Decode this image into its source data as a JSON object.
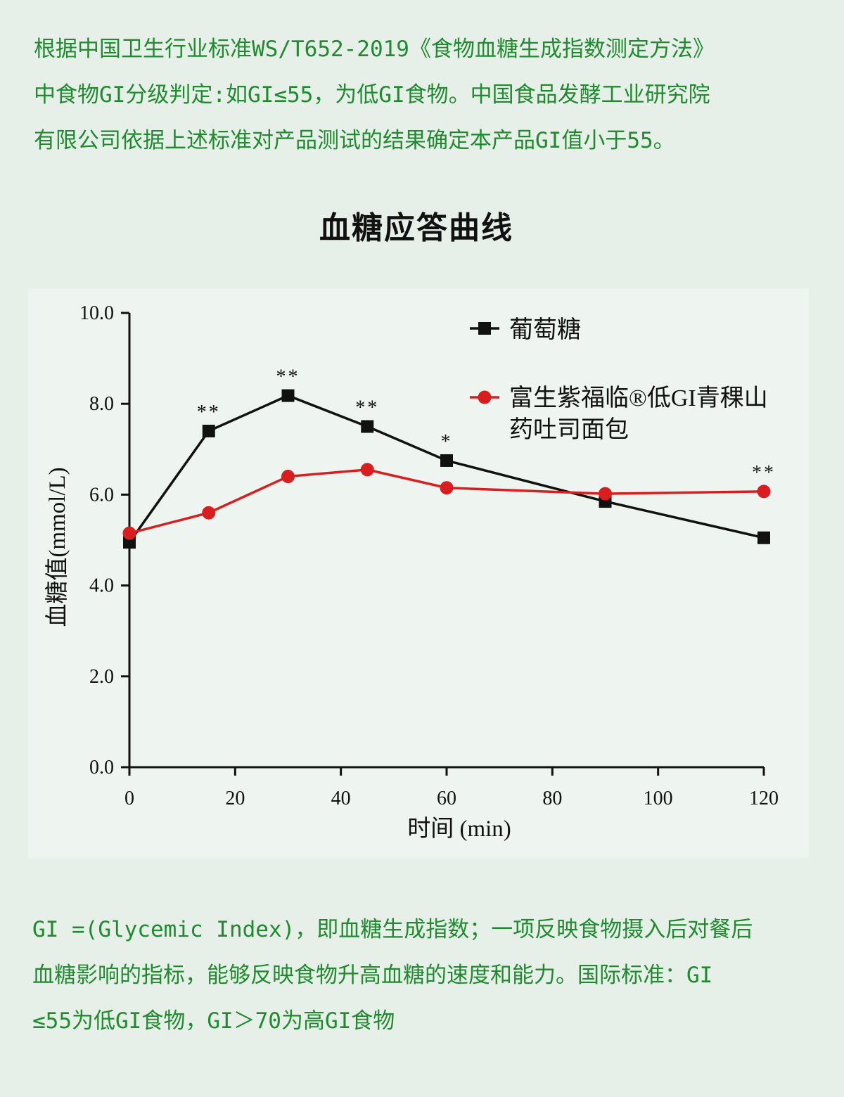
{
  "intro": {
    "lines": [
      "根据中国卫生行业标准WS/T652-2019《食物血糖生成指数测定方法》",
      "中食物GI分级判定:如GI≤55，为低GI食物。中国食品发酵工业研究院",
      "有限公司依据上述标准对产品测试的结果确定本产品GI值小于55。"
    ]
  },
  "colors": {
    "text_green": "#1f8a2e",
    "glucose": "#111111",
    "product": "#d81e1e"
  },
  "chart_data": {
    "type": "line",
    "title": "血糖应答曲线",
    "xlabel": "时间 (min)",
    "ylabel": "血糖值(mmol/L)",
    "xlim": [
      0,
      120
    ],
    "ylim": [
      0,
      10
    ],
    "x_ticks": [
      "0",
      "20",
      "40",
      "60",
      "80",
      "100",
      "120"
    ],
    "y_ticks": [
      "0.0",
      "2.0",
      "4.0",
      "6.0",
      "8.0",
      "10.0"
    ],
    "x": [
      0,
      15,
      30,
      45,
      60,
      90,
      120
    ],
    "series": [
      {
        "name": "葡萄糖",
        "marker": "square",
        "values": [
          4.95,
          7.4,
          8.18,
          7.5,
          6.75,
          5.85,
          5.05
        ]
      },
      {
        "name_lines": [
          "富生紫福临®低GI青稞山",
          "药吐司面包"
        ],
        "marker": "circle",
        "values": [
          5.15,
          5.6,
          6.4,
          6.55,
          6.15,
          6.02,
          6.07
        ]
      }
    ],
    "annotations": [
      {
        "x": 15,
        "text": "**"
      },
      {
        "x": 30,
        "text": "**"
      },
      {
        "x": 45,
        "text": "**"
      },
      {
        "x": 60,
        "text": "*"
      },
      {
        "x": 120,
        "text": "**"
      }
    ],
    "legend": "top-right",
    "grid": false
  },
  "footer": {
    "lines": [
      "GI =(Glycemic Index)，即血糖生成指数；一项反映食物摄入后对餐后",
      "血糖影响的指标，能够反映食物升高血糖的速度和能力。国际标准：GI",
      "≤55为低GI食物，GI＞70为高GI食物"
    ]
  }
}
